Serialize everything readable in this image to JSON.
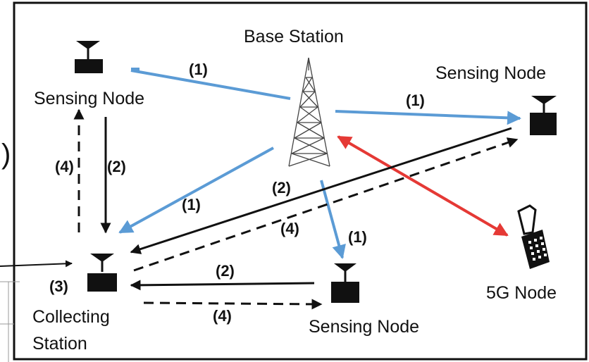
{
  "colors": {
    "wireless": "#5b9bd5",
    "cellular": "#e53935",
    "wired": "#111111",
    "frame": "#111111"
  },
  "labels": {
    "base_station": "Base Station",
    "sensing_node_top_left": "Sensing Node",
    "sensing_node_top_right": "Sensing Node",
    "sensing_node_bottom": "Sensing Node",
    "node_5g": "5G Node",
    "collecting_station_line1": "Collecting",
    "collecting_station_line2": "Station",
    "left_edge_paren": ")"
  },
  "steps": {
    "s1_top_left": "(1)",
    "s1_top_right": "(1)",
    "s1_middle": "(1)",
    "s1_bottom": "(1)",
    "s2_left": "(2)",
    "s2_middle": "(2)",
    "s2_bottom": "(2)",
    "s3": "(3)",
    "s4_left": "(4)",
    "s4_middle": "(4)",
    "s4_bottom": "(4)"
  },
  "icons": {
    "tower": "radio-tower-icon",
    "sensor": "antenna-node-icon",
    "phone": "mobile-phone-icon"
  }
}
